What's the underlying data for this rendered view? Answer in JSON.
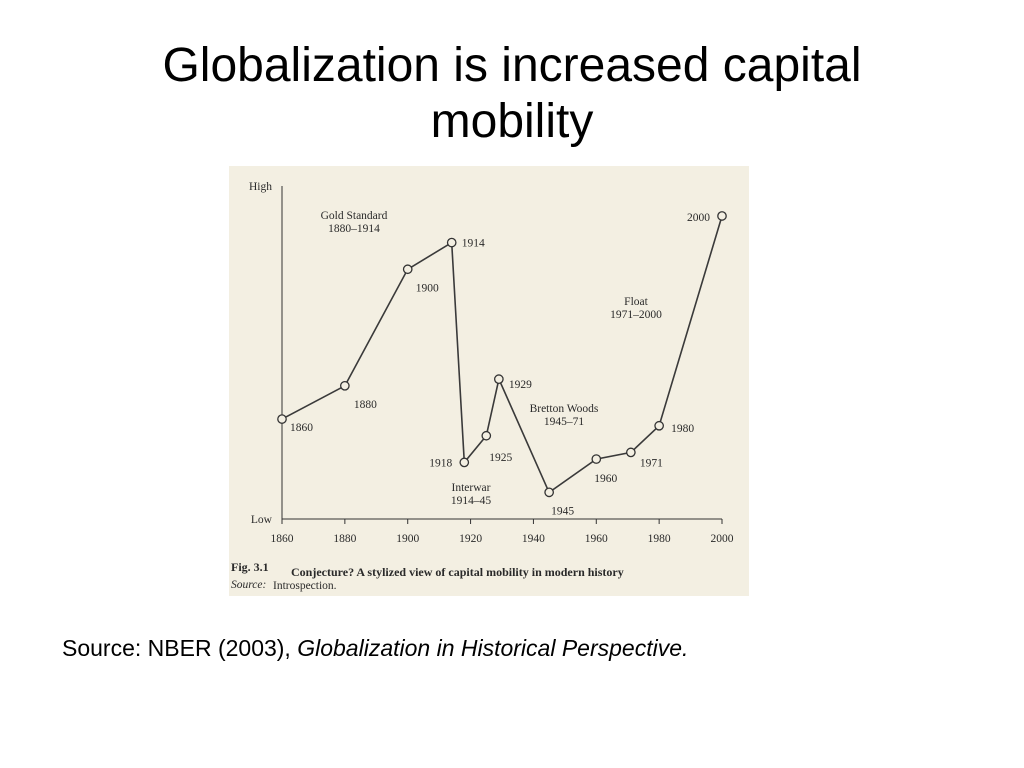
{
  "slide": {
    "title_line1": "Globalization is increased capital",
    "title_line2": "mobility",
    "source_prefix": "Source: NBER (2003), ",
    "source_title": "Globalization in Historical Perspective."
  },
  "chart_data": {
    "type": "line",
    "title": "",
    "xlabel": "",
    "ylabel": "",
    "xlim": [
      1860,
      2000
    ],
    "ylim": [
      0,
      100
    ],
    "y_tick_labels": [
      {
        "label": "Low",
        "value": 0
      },
      {
        "label": "High",
        "value": 100
      }
    ],
    "x_ticks": [
      1860,
      1880,
      1900,
      1920,
      1940,
      1960,
      1980,
      2000
    ],
    "series": [
      {
        "points": [
          {
            "x": 1860,
            "y": 30,
            "label": "1860"
          },
          {
            "x": 1880,
            "y": 40,
            "label": "1880"
          },
          {
            "x": 1900,
            "y": 75,
            "label": "1900"
          },
          {
            "x": 1914,
            "y": 83,
            "label": "1914"
          },
          {
            "x": 1918,
            "y": 17,
            "label": "1918"
          },
          {
            "x": 1925,
            "y": 25,
            "label": "1925"
          },
          {
            "x": 1929,
            "y": 42,
            "label": "1929"
          },
          {
            "x": 1945,
            "y": 8,
            "label": "1945"
          },
          {
            "x": 1960,
            "y": 18,
            "label": "1960"
          },
          {
            "x": 1971,
            "y": 20,
            "label": "1971"
          },
          {
            "x": 1980,
            "y": 28,
            "label": "1980"
          },
          {
            "x": 2000,
            "y": 91,
            "label": "2000"
          }
        ]
      }
    ],
    "annotations": [
      {
        "id": "gold",
        "line1": "Gold Standard",
        "line2": "1880–1914"
      },
      {
        "id": "float",
        "line1": "Float",
        "line2": "1971–2000"
      },
      {
        "id": "bretton",
        "line1": "Bretton Woods",
        "line2": "1945–71"
      },
      {
        "id": "interwar",
        "line1": "Interwar",
        "line2": "1914–45"
      }
    ],
    "caption_label": "Fig. 3.1",
    "caption_text": "Conjecture? A stylized view of capital mobility in modern history",
    "caption_source_label": "Source:",
    "caption_source_text": "Introspection."
  }
}
